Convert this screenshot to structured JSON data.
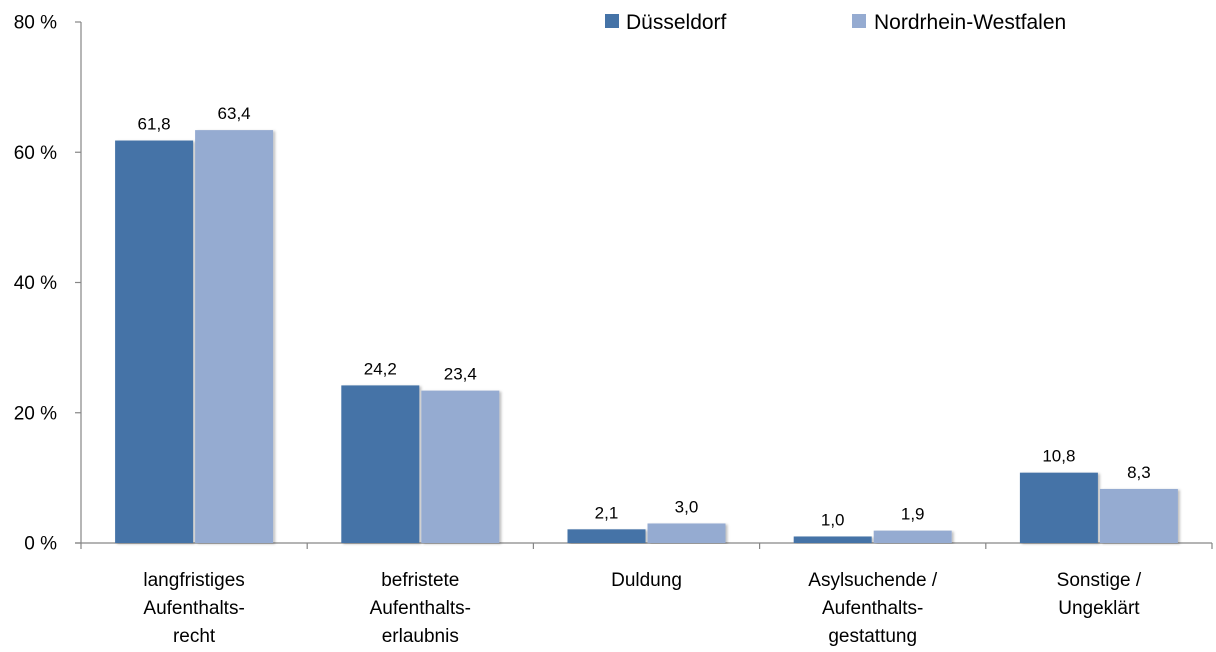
{
  "chart_data": {
    "type": "bar",
    "title": "",
    "xlabel": "",
    "ylabel": "",
    "ylim": [
      0,
      80
    ],
    "y_ticks": [
      "0 %",
      "20 %",
      "40 %",
      "60 %",
      "80 %"
    ],
    "y_tick_values": [
      0,
      20,
      40,
      60,
      80
    ],
    "grid": false,
    "legend_position": "top-right",
    "categories": [
      [
        "langfristiges",
        "Aufenthalts-",
        "recht"
      ],
      [
        "befristete",
        "Aufenthalts-",
        "erlaubnis"
      ],
      [
        "Duldung"
      ],
      [
        "Asylsuchende /",
        "Aufenthalts-",
        "gestattung"
      ],
      [
        "Sonstige /",
        "Ungeklärt"
      ]
    ],
    "series": [
      {
        "name": "Düsseldorf",
        "color": "#4573A7",
        "values": [
          61.8,
          24.2,
          2.1,
          1.0,
          10.8
        ],
        "labels": [
          "61,8",
          "24,2",
          "2,1",
          "1,0",
          "10,8"
        ]
      },
      {
        "name": "Nordrhein-Westfalen",
        "color": "#95ABD1",
        "values": [
          63.4,
          23.4,
          3.0,
          1.9,
          8.3
        ],
        "labels": [
          "63,4",
          "23,4",
          "3,0",
          "1,9",
          "8,3"
        ]
      }
    ]
  }
}
